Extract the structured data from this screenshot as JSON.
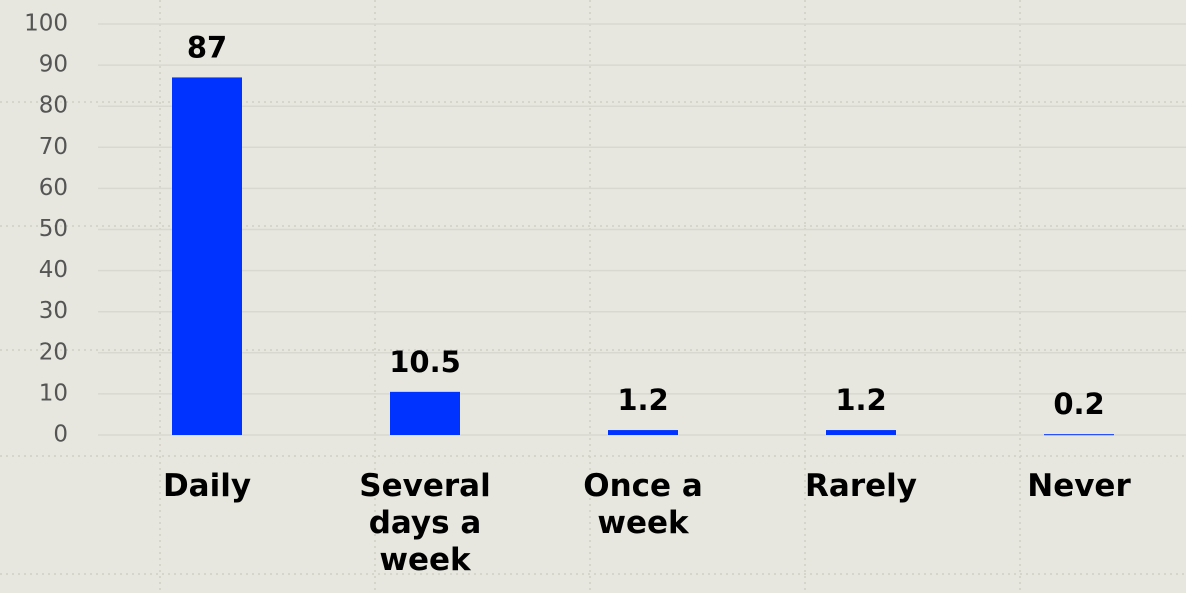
{
  "chart_data": {
    "type": "bar",
    "categories": [
      "Daily",
      "Several days a week",
      "Once a week",
      "Rarely",
      "Never"
    ],
    "values": [
      87,
      10.5,
      1.2,
      1.2,
      0.2
    ],
    "color": "#0033ff",
    "ylim": [
      0,
      100
    ],
    "yticks": [
      0,
      10,
      20,
      30,
      40,
      50,
      60,
      70,
      80,
      90,
      100
    ],
    "grid": true
  }
}
